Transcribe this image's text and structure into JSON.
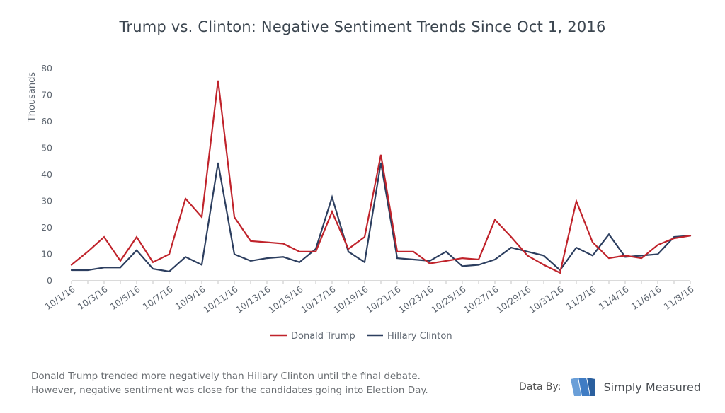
{
  "chart_data": {
    "type": "line",
    "title": "Trump vs. Clinton: Negative Sentiment Trends Since Oct 1, 2016",
    "ylabel": "Thousands",
    "xlabel": "",
    "ylim": [
      0,
      80
    ],
    "yticks": [
      0,
      10,
      20,
      30,
      40,
      50,
      60,
      70,
      80
    ],
    "x": [
      "10/1/16",
      "10/2/16",
      "10/3/16",
      "10/4/16",
      "10/5/16",
      "10/6/16",
      "10/7/16",
      "10/8/16",
      "10/9/16",
      "10/10/16",
      "10/11/16",
      "10/12/16",
      "10/13/16",
      "10/14/16",
      "10/15/16",
      "10/16/16",
      "10/17/16",
      "10/18/16",
      "10/19/16",
      "10/20/16",
      "10/21/16",
      "10/22/16",
      "10/23/16",
      "10/24/16",
      "10/25/16",
      "10/26/16",
      "10/27/16",
      "10/28/16",
      "10/29/16",
      "10/30/16",
      "10/31/16",
      "11/1/16",
      "11/2/16",
      "11/3/16",
      "11/4/16",
      "11/5/16",
      "11/6/16",
      "11/7/16",
      "11/8/16"
    ],
    "tick_labels": [
      "10/1/16",
      "10/3/16",
      "10/5/16",
      "10/7/16",
      "10/9/16",
      "10/11/16",
      "10/13/16",
      "10/15/16",
      "10/17/16",
      "10/19/16",
      "10/21/16",
      "10/23/16",
      "10/25/16",
      "10/27/16",
      "10/29/16",
      "10/31/16",
      "11/2/16",
      "11/4/16",
      "11/6/16",
      "11/8/16"
    ],
    "series": [
      {
        "name": "Donald Trump",
        "color": "#c0232b",
        "values": [
          6,
          11,
          16.5,
          7.5,
          16.5,
          7,
          10,
          31,
          24,
          75.5,
          24,
          15,
          14.5,
          14,
          11,
          11,
          26,
          12,
          16.5,
          47.5,
          11,
          11,
          6.5,
          7.5,
          8.5,
          8,
          23,
          16.5,
          9.5,
          6,
          3,
          30,
          14.5,
          8.5,
          9.5,
          8.5,
          13.5,
          16,
          17
        ]
      },
      {
        "name": "Hillary Clinton",
        "color": "#2c3e5f",
        "values": [
          4,
          4,
          5,
          5,
          11.5,
          4.5,
          3.5,
          9,
          6,
          44.5,
          10,
          7.5,
          8.5,
          9,
          7,
          12,
          31.5,
          11,
          7,
          44.5,
          8.5,
          8,
          7.5,
          11,
          5.5,
          6,
          8,
          12.5,
          11,
          9.5,
          4,
          12.5,
          9.5,
          17.5,
          9,
          9.5,
          10,
          16.5,
          17
        ]
      }
    ],
    "legend": "bottom-center"
  },
  "caption": {
    "line1": "Donald Trump trended more negatively than Hillary Clinton until the final debate.",
    "line2": "However, negative sentiment was close for the candidates going into Election Day."
  },
  "credit": {
    "label": "Data By:",
    "brand": "Simply Measured"
  },
  "colors": {
    "trump": "#c0232b",
    "clinton": "#2c3e5f",
    "axis": "#b5b5b5",
    "text": "#5e6670"
  }
}
